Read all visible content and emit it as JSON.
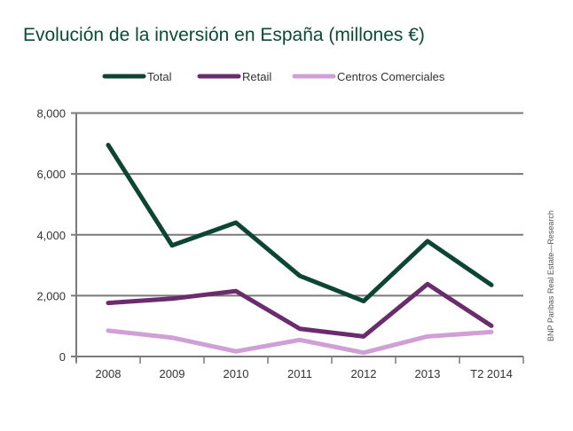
{
  "chart_data": {
    "type": "line",
    "title": "Evolución de la inversión en España (millones €)",
    "categories": [
      "2008",
      "2009",
      "2010",
      "2011",
      "2012",
      "2013",
      "T2 2014"
    ],
    "series": [
      {
        "name": "Total",
        "color": "#0d4534",
        "values": [
          6950,
          3650,
          4400,
          2650,
          1820,
          3790,
          2350
        ]
      },
      {
        "name": "Retail",
        "color": "#6b2c6e",
        "values": [
          1760,
          1900,
          2150,
          910,
          660,
          2380,
          1010
        ]
      },
      {
        "name": "Centros Comerciales",
        "color": "#cf9fd6",
        "values": [
          850,
          620,
          170,
          545,
          125,
          660,
          805
        ]
      }
    ],
    "yticks": [
      0,
      2000,
      4000,
      6000,
      8000
    ],
    "ytick_labels": [
      "0",
      "2,000",
      "4,000",
      "6,000",
      "8,000"
    ],
    "ylim": [
      0,
      8000
    ],
    "grid": true,
    "legend_position": "top",
    "source": "BNP Paribas Real Estate—Research"
  }
}
